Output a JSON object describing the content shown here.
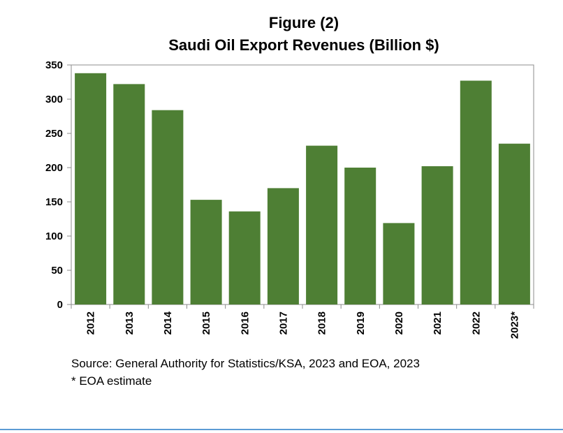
{
  "chart_data": {
    "type": "bar",
    "title": "Figure (2)",
    "subtitle": "Saudi Oil Export Revenues (Billion $)",
    "categories": [
      "2012",
      "2013",
      "2014",
      "2015",
      "2016",
      "2017",
      "2018",
      "2019",
      "2020",
      "2021",
      "2022",
      "2023*"
    ],
    "values": [
      338,
      322,
      284,
      153,
      136,
      170,
      232,
      200,
      119,
      202,
      327,
      235
    ],
    "xlabel": "",
    "ylabel": "",
    "ylim": [
      0,
      350
    ],
    "yticks": [
      0,
      50,
      100,
      150,
      200,
      250,
      300,
      350
    ],
    "grid": false,
    "legend": "none",
    "bar_color": "#4e7f34"
  },
  "notes": {
    "source": "Source: General Authority for Statistics/KSA, 2023 and EOA, 2023",
    "footnote": "* EOA estimate"
  },
  "colors": {
    "bottom_rule": "#5b9bd5"
  }
}
